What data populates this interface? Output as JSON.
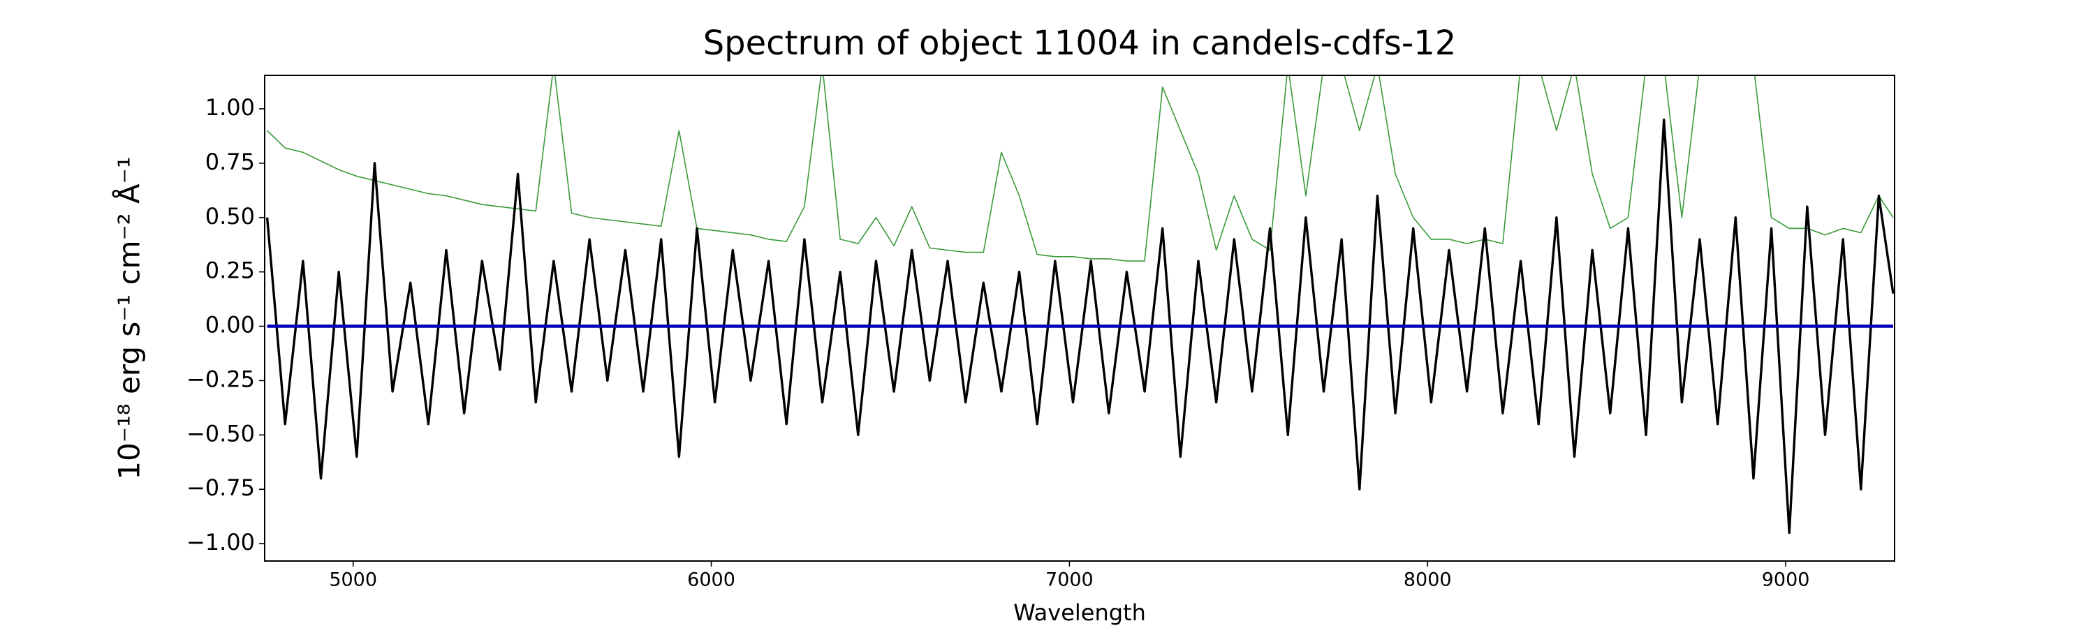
{
  "chart_data": {
    "type": "line",
    "title": "Spectrum of object 11004 in candels-cdfs-12",
    "xlabel": "Wavelength",
    "ylabel": "10⁻¹⁸ erg s⁻¹ cm⁻² Å⁻¹",
    "x": [
      4760,
      4810,
      4860,
      4910,
      4960,
      5010,
      5060,
      5110,
      5160,
      5210,
      5260,
      5310,
      5360,
      5410,
      5460,
      5510,
      5560,
      5610,
      5660,
      5710,
      5760,
      5810,
      5860,
      5910,
      5960,
      6010,
      6060,
      6110,
      6160,
      6210,
      6260,
      6310,
      6360,
      6410,
      6460,
      6510,
      6560,
      6610,
      6660,
      6710,
      6760,
      6810,
      6860,
      6910,
      6960,
      7010,
      7060,
      7110,
      7160,
      7210,
      7260,
      7310,
      7360,
      7410,
      7460,
      7510,
      7560,
      7610,
      7660,
      7710,
      7760,
      7810,
      7860,
      7910,
      7960,
      8010,
      8060,
      8110,
      8160,
      8210,
      8260,
      8310,
      8360,
      8410,
      8460,
      8510,
      8560,
      8610,
      8660,
      8710,
      8760,
      8810,
      8860,
      8910,
      8960,
      9010,
      9060,
      9110,
      9160,
      9210,
      9260,
      9300
    ],
    "series": [
      {
        "color": "#3a9a3a",
        "width": 1.6,
        "values": [
          0.9,
          0.82,
          0.8,
          0.76,
          0.72,
          0.69,
          0.67,
          0.65,
          0.63,
          0.61,
          0.6,
          0.58,
          0.56,
          0.55,
          0.54,
          0.53,
          1.2,
          0.52,
          0.5,
          0.49,
          0.48,
          0.47,
          0.46,
          0.9,
          0.45,
          0.44,
          0.43,
          0.42,
          0.4,
          0.39,
          0.55,
          1.2,
          0.4,
          0.38,
          0.5,
          0.37,
          0.55,
          0.36,
          0.35,
          0.34,
          0.34,
          0.8,
          0.6,
          0.33,
          0.32,
          0.32,
          0.31,
          0.31,
          0.3,
          0.3,
          1.1,
          0.9,
          0.7,
          0.35,
          0.6,
          0.4,
          0.35,
          1.2,
          0.6,
          1.2,
          1.2,
          0.9,
          1.2,
          0.7,
          0.5,
          0.4,
          0.4,
          0.38,
          0.4,
          0.38,
          1.2,
          1.2,
          0.9,
          1.2,
          0.7,
          0.45,
          0.5,
          1.2,
          1.2,
          0.5,
          1.2,
          1.2,
          1.2,
          1.2,
          0.5,
          0.45,
          0.45,
          0.42,
          0.45,
          0.43,
          0.6,
          0.5
        ]
      },
      {
        "color": "#000000",
        "width": 3.4,
        "values": [
          0.5,
          -0.45,
          0.3,
          -0.7,
          0.25,
          -0.6,
          0.75,
          -0.3,
          0.2,
          -0.45,
          0.35,
          -0.4,
          0.3,
          -0.2,
          0.7,
          -0.35,
          0.3,
          -0.3,
          0.4,
          -0.25,
          0.35,
          -0.3,
          0.4,
          -0.6,
          0.45,
          -0.35,
          0.35,
          -0.25,
          0.3,
          -0.45,
          0.4,
          -0.35,
          0.25,
          -0.5,
          0.3,
          -0.3,
          0.35,
          -0.25,
          0.3,
          -0.35,
          0.2,
          -0.3,
          0.25,
          -0.45,
          0.3,
          -0.35,
          0.3,
          -0.4,
          0.25,
          -0.3,
          0.45,
          -0.6,
          0.3,
          -0.35,
          0.4,
          -0.3,
          0.45,
          -0.5,
          0.5,
          -0.3,
          0.4,
          -0.75,
          0.6,
          -0.4,
          0.45,
          -0.35,
          0.35,
          -0.3,
          0.45,
          -0.4,
          0.3,
          -0.45,
          0.5,
          -0.6,
          0.35,
          -0.4,
          0.45,
          -0.5,
          0.95,
          -0.35,
          0.4,
          -0.45,
          0.5,
          -0.7,
          0.45,
          -0.95,
          0.55,
          -0.5,
          0.4,
          -0.75,
          0.6,
          0.15
        ]
      },
      {
        "color": "#0000bb",
        "width": 4.5,
        "values": [
          0,
          0,
          0,
          0,
          0,
          0,
          0,
          0,
          0,
          0,
          0,
          0,
          0,
          0,
          0,
          0,
          0,
          0,
          0,
          0,
          0,
          0,
          0,
          0,
          0,
          0,
          0,
          0,
          0,
          0,
          0,
          0,
          0,
          0,
          0,
          0,
          0,
          0,
          0,
          0,
          0,
          0,
          0,
          0,
          0,
          0,
          0,
          0,
          0,
          0,
          0,
          0,
          0,
          0,
          0,
          0,
          0,
          0,
          0,
          0,
          0,
          0,
          0,
          0,
          0,
          0,
          0,
          0,
          0,
          0,
          0,
          0,
          0,
          0,
          0,
          0,
          0,
          0,
          0,
          0,
          0,
          0,
          0,
          0,
          0,
          0,
          0,
          0,
          0,
          0,
          0,
          0
        ]
      }
    ],
    "xlim": [
      4753,
      9304
    ],
    "ylim": [
      -1.08,
      1.154
    ],
    "xticks": [
      5000,
      6000,
      7000,
      8000,
      9000
    ],
    "yticks": [
      {
        "value": -1,
        "label": "−1.00"
      },
      {
        "value": -0.75,
        "label": "−0.75"
      },
      {
        "value": -0.5,
        "label": "−0.50"
      },
      {
        "value": -0.25,
        "label": "−0.25"
      },
      {
        "value": 0,
        "label": "0.00"
      },
      {
        "value": 0.25,
        "label": "0.25"
      },
      {
        "value": 0.5,
        "label": "0.50"
      },
      {
        "value": 0.75,
        "label": "0.75"
      },
      {
        "value": 1,
        "label": "1.00"
      }
    ]
  }
}
